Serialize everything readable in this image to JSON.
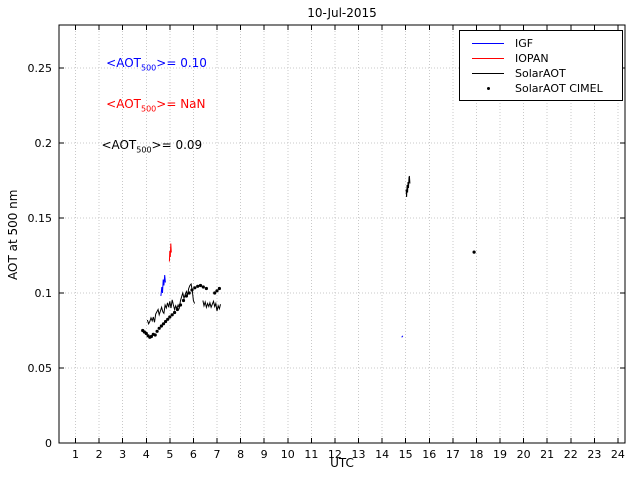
{
  "chart_data": {
    "type": "line",
    "title": "10-Jul-2015",
    "xlabel": "UTC",
    "ylabel": "AOT at 500 nm",
    "xlim": [
      0.3,
      24.3
    ],
    "ylim": [
      0,
      0.2787
    ],
    "xticks": [
      1,
      2,
      3,
      4,
      5,
      6,
      7,
      8,
      9,
      10,
      11,
      12,
      13,
      14,
      15,
      16,
      17,
      18,
      19,
      20,
      21,
      22,
      23,
      24
    ],
    "yticks": [
      0,
      0.05,
      0.1,
      0.15,
      0.2,
      0.25
    ],
    "ytick_labels": [
      "0",
      "0.05",
      "0.1",
      "0.15",
      "0.2",
      "0.25"
    ],
    "grid": true,
    "grid_color": "#c9c9c9",
    "axis_color": "#000000",
    "legend_position": "top-right",
    "legend": [
      {
        "label": "IGF",
        "color": "#0000ff",
        "marker": "line"
      },
      {
        "label": "IOPAN",
        "color": "#ff0000",
        "marker": "line"
      },
      {
        "label": "SolarAOT",
        "color": "#000000",
        "marker": "line"
      },
      {
        "label": "SolarAOT CIMEL",
        "color": "#000000",
        "marker": "dot"
      }
    ],
    "annotations": [
      {
        "pre": "<AOT",
        "sub": "500",
        "post": ">= 0.10",
        "color": "#0000ff",
        "x": 2.3,
        "y": 0.253
      },
      {
        "pre": "<AOT",
        "sub": "500",
        "post": ">=  NaN",
        "color": "#ff0000",
        "x": 2.3,
        "y": 0.2255
      },
      {
        "pre": "<AOT",
        "sub": "500",
        "post": ">= 0.09",
        "color": "#000000",
        "x": 2.1,
        "y": 0.198
      }
    ],
    "series": [
      {
        "name": "IGF",
        "type": "line",
        "color": "#0000ff",
        "segments": [
          [
            [
              4.62,
              0.098
            ],
            [
              4.66,
              0.104
            ],
            [
              4.69,
              0.1
            ],
            [
              4.72,
              0.109
            ],
            [
              4.75,
              0.105
            ],
            [
              4.78,
              0.112
            ],
            [
              4.81,
              0.107
            ]
          ],
          [
            [
              14.83,
              0.0705
            ],
            [
              14.88,
              0.0715
            ]
          ]
        ]
      },
      {
        "name": "IOPAN",
        "type": "line",
        "color": "#ff0000",
        "segments": [
          [
            [
              4.98,
              0.121
            ],
            [
              5.0,
              0.128
            ],
            [
              5.02,
              0.124
            ],
            [
              5.04,
              0.133
            ],
            [
              5.06,
              0.127
            ]
          ]
        ]
      },
      {
        "name": "SolarAOT",
        "type": "line",
        "color": "#000000",
        "segments": [
          [
            [
              4.05,
              0.082
            ],
            [
              4.1,
              0.0795
            ],
            [
              4.15,
              0.081
            ],
            [
              4.2,
              0.0835
            ],
            [
              4.25,
              0.0815
            ],
            [
              4.3,
              0.084
            ],
            [
              4.35,
              0.0805
            ],
            [
              4.4,
              0.086
            ],
            [
              4.45,
              0.0875
            ],
            [
              4.5,
              0.089
            ],
            [
              4.55,
              0.0855
            ],
            [
              4.6,
              0.088
            ],
            [
              4.65,
              0.0905
            ],
            [
              4.7,
              0.0875
            ],
            [
              4.75,
              0.0865
            ],
            [
              4.8,
              0.092
            ],
            [
              4.85,
              0.09
            ],
            [
              4.9,
              0.0935
            ],
            [
              4.95,
              0.0905
            ],
            [
              5.0,
              0.0945
            ],
            [
              5.05,
              0.09
            ],
            [
              5.1,
              0.0955
            ],
            [
              5.15,
              0.092
            ],
            [
              5.2,
              0.089
            ],
            [
              5.25,
              0.0915
            ],
            [
              5.3,
              0.0895
            ],
            [
              5.35,
              0.092
            ],
            [
              5.4,
              0.09
            ],
            [
              5.45,
              0.095
            ],
            [
              5.5,
              0.0975
            ],
            [
              5.55,
              0.1
            ],
            [
              5.6,
              0.0965
            ],
            [
              5.65,
              0.099
            ],
            [
              5.7,
              0.101
            ],
            [
              5.75,
              0.0985
            ],
            [
              5.8,
              0.103
            ],
            [
              5.85,
              0.105
            ],
            [
              5.9,
              0.106
            ],
            [
              5.95,
              0.102
            ],
            [
              6.0,
              0.095
            ],
            [
              6.05,
              0.093
            ]
          ],
          [
            [
              6.4,
              0.095
            ],
            [
              6.45,
              0.0915
            ],
            [
              6.5,
              0.094
            ],
            [
              6.55,
              0.0905
            ],
            [
              6.6,
              0.093
            ],
            [
              6.65,
              0.091
            ],
            [
              6.7,
              0.0935
            ],
            [
              6.75,
              0.0905
            ],
            [
              6.8,
              0.0925
            ],
            [
              6.85,
              0.0945
            ],
            [
              6.9,
              0.091
            ],
            [
              6.95,
              0.093
            ],
            [
              7.0,
              0.088
            ],
            [
              7.05,
              0.0915
            ],
            [
              7.1,
              0.0895
            ],
            [
              7.15,
              0.0925
            ]
          ],
          [
            [
              15.02,
              0.169
            ],
            [
              15.04,
              0.164
            ],
            [
              15.06,
              0.172
            ],
            [
              15.08,
              0.167
            ],
            [
              15.1,
              0.174
            ],
            [
              15.12,
              0.17
            ],
            [
              15.14,
              0.177
            ],
            [
              15.16,
              0.178
            ],
            [
              15.18,
              0.173
            ]
          ]
        ]
      },
      {
        "name": "SolarAOT CIMEL",
        "type": "scatter",
        "color": "#000000",
        "points": [
          [
            3.85,
            0.075
          ],
          [
            3.92,
            0.074
          ],
          [
            4.0,
            0.073
          ],
          [
            4.08,
            0.0715
          ],
          [
            4.15,
            0.0705
          ],
          [
            4.22,
            0.071
          ],
          [
            4.3,
            0.0725
          ],
          [
            4.38,
            0.072
          ],
          [
            4.46,
            0.0745
          ],
          [
            4.55,
            0.0765
          ],
          [
            4.64,
            0.078
          ],
          [
            4.73,
            0.0795
          ],
          [
            4.82,
            0.081
          ],
          [
            4.91,
            0.0825
          ],
          [
            5.0,
            0.084
          ],
          [
            5.1,
            0.0855
          ],
          [
            5.2,
            0.087
          ],
          [
            5.32,
            0.089
          ],
          [
            5.45,
            0.092
          ],
          [
            5.58,
            0.095
          ],
          [
            5.7,
            0.098
          ],
          [
            5.82,
            0.1
          ],
          [
            5.94,
            0.102
          ],
          [
            6.06,
            0.1035
          ],
          [
            6.18,
            0.1045
          ],
          [
            6.3,
            0.105
          ],
          [
            6.42,
            0.104
          ],
          [
            6.55,
            0.103
          ],
          [
            6.9,
            0.1
          ],
          [
            7.0,
            0.1015
          ],
          [
            7.1,
            0.103
          ],
          [
            17.9,
            0.1273
          ]
        ]
      }
    ]
  }
}
